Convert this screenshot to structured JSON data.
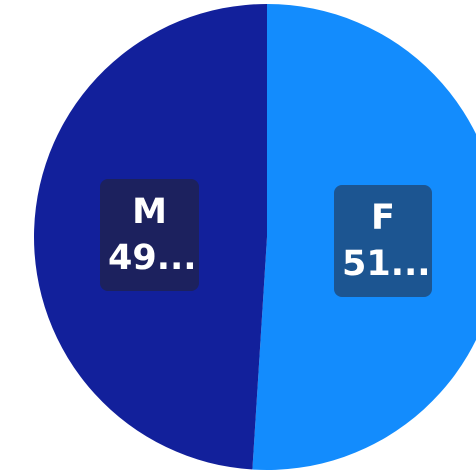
{
  "chart_data": {
    "type": "pie",
    "start_angle_deg": 0,
    "direction": "clockwise",
    "slices": [
      {
        "label": "F",
        "value_label": "51...",
        "value": 51,
        "color": "#138cfd",
        "label_bg": "#1c5591"
      },
      {
        "label": "M",
        "value_label": "49...",
        "value": 49,
        "color": "#12209b",
        "label_bg": "#1c215e"
      }
    ]
  }
}
